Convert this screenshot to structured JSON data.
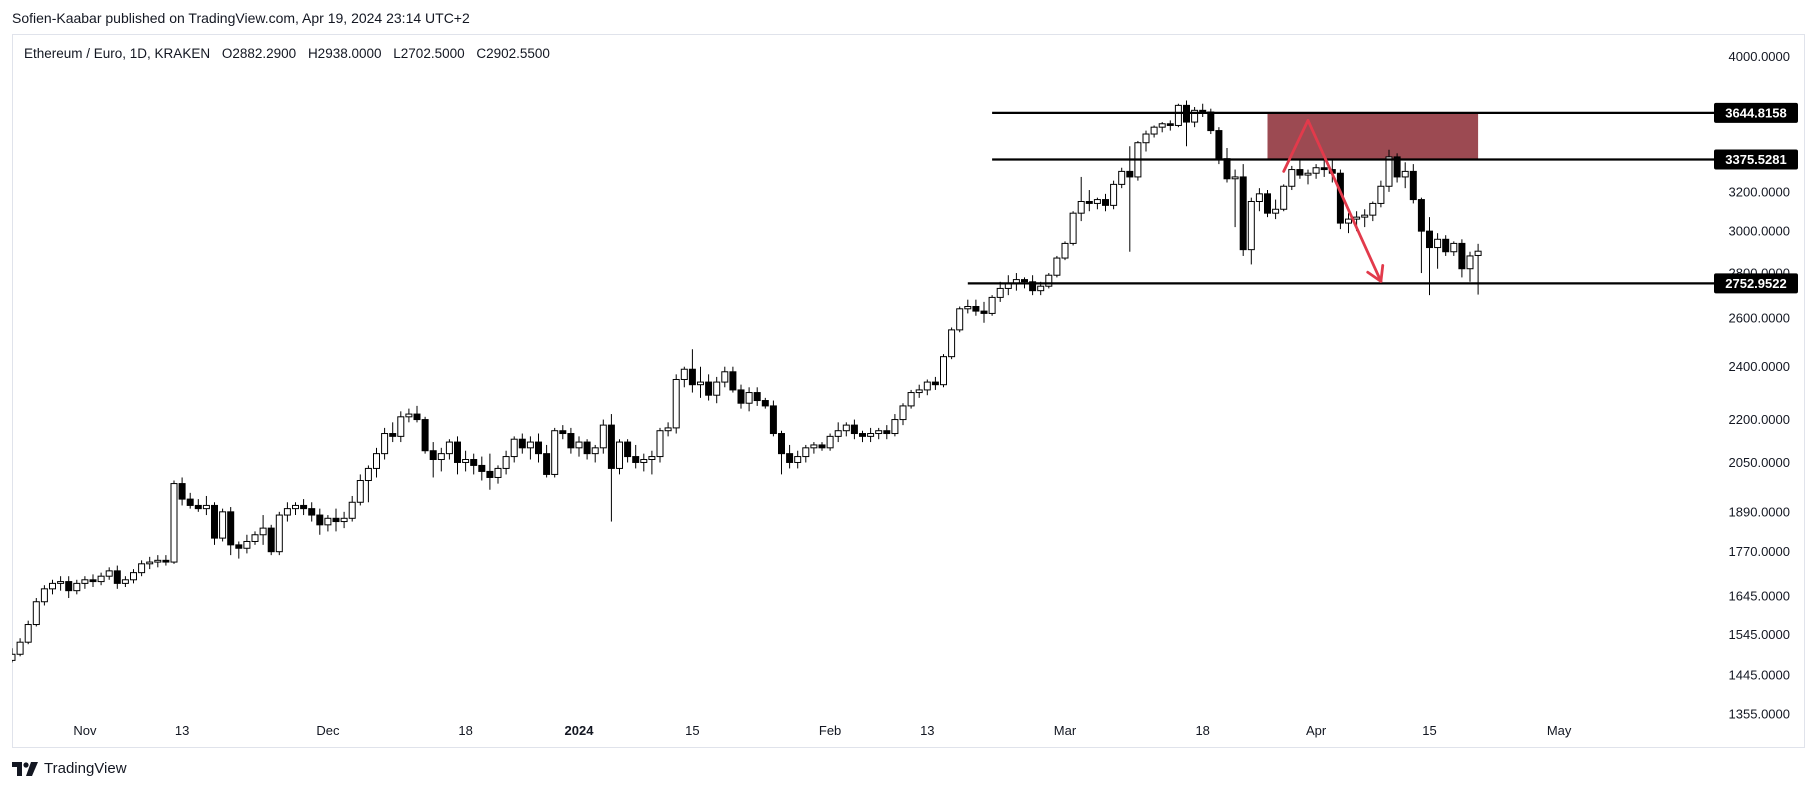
{
  "header": {
    "published_line": "Sofien-Kaabar published on TradingView.com, Apr 19, 2024 23:14 UTC+2"
  },
  "legend": {
    "symbol": "Ethereum / Euro, 1D, KRAKEN",
    "open": "O2882.2900",
    "high": "H2938.0000",
    "low": "L2702.5000",
    "close": "C2902.5500"
  },
  "footer": {
    "brand": "TradingView"
  },
  "colors": {
    "up_candle_fill": "#ffffff",
    "down_candle_fill": "#000000",
    "zone": "#9c4a52",
    "arrow": "#e23a4b",
    "level_label_bg": "#000000"
  },
  "chart_data": {
    "type": "candlestick",
    "scale": "log",
    "ylim": [
      1355,
      4150
    ],
    "y_ticks": [
      "4000.0000",
      "3200.0000",
      "3000.0000",
      "2800.0000",
      "2600.0000",
      "2400.0000",
      "2200.0000",
      "2050.0000",
      "1890.0000",
      "1770.0000",
      "1645.0000",
      "1545.0000",
      "1445.0000",
      "1355.0000"
    ],
    "x_ticks": [
      {
        "label": "Nov",
        "idx": 9,
        "bold": false
      },
      {
        "label": "13",
        "idx": 21,
        "bold": false
      },
      {
        "label": "Dec",
        "idx": 39,
        "bold": false
      },
      {
        "label": "18",
        "idx": 56,
        "bold": false
      },
      {
        "label": "2024",
        "idx": 70,
        "bold": true
      },
      {
        "label": "15",
        "idx": 84,
        "bold": false
      },
      {
        "label": "Feb",
        "idx": 101,
        "bold": false
      },
      {
        "label": "13",
        "idx": 113,
        "bold": false
      },
      {
        "label": "Mar",
        "idx": 130,
        "bold": false
      },
      {
        "label": "18",
        "idx": 147,
        "bold": false
      },
      {
        "label": "Apr",
        "idx": 161,
        "bold": false
      },
      {
        "label": "15",
        "idx": 175,
        "bold": false
      },
      {
        "label": "May",
        "idx": 191,
        "bold": false
      }
    ],
    "levels": [
      {
        "label": "3644.8158",
        "value": 3644.8158,
        "from_idx": 121
      },
      {
        "label": "3375.5281",
        "value": 3375.5281,
        "from_idx": 121
      },
      {
        "label": "2752.9522",
        "value": 2752.9522,
        "from_idx": 118
      }
    ],
    "zone": {
      "from_idx": 155,
      "to_idx": 181,
      "top": 3644.8158,
      "bottom": 3375.5281
    },
    "arrow": [
      {
        "idx": 157,
        "value": 3310
      },
      {
        "idx": 160,
        "value": 3600
      },
      {
        "idx": 169,
        "value": 2762
      }
    ],
    "candles": [
      [
        1480,
        1510,
        1475,
        1495
      ],
      [
        1495,
        1535,
        1490,
        1525
      ],
      [
        1525,
        1580,
        1520,
        1570
      ],
      [
        1570,
        1640,
        1565,
        1630
      ],
      [
        1630,
        1675,
        1620,
        1665
      ],
      [
        1665,
        1690,
        1650,
        1680
      ],
      [
        1680,
        1700,
        1660,
        1685
      ],
      [
        1685,
        1700,
        1640,
        1660
      ],
      [
        1660,
        1690,
        1650,
        1680
      ],
      [
        1680,
        1700,
        1665,
        1690
      ],
      [
        1690,
        1705,
        1670,
        1685
      ],
      [
        1685,
        1710,
        1675,
        1700
      ],
      [
        1700,
        1725,
        1690,
        1715
      ],
      [
        1715,
        1730,
        1665,
        1680
      ],
      [
        1680,
        1700,
        1670,
        1690
      ],
      [
        1690,
        1720,
        1680,
        1710
      ],
      [
        1710,
        1745,
        1700,
        1735
      ],
      [
        1735,
        1755,
        1720,
        1740
      ],
      [
        1740,
        1760,
        1725,
        1745
      ],
      [
        1745,
        1760,
        1730,
        1740
      ],
      [
        1740,
        1990,
        1735,
        1980
      ],
      [
        1980,
        2000,
        1910,
        1930
      ],
      [
        1930,
        1950,
        1900,
        1910
      ],
      [
        1910,
        1930,
        1890,
        1900
      ],
      [
        1900,
        1940,
        1880,
        1910
      ],
      [
        1910,
        1920,
        1790,
        1810
      ],
      [
        1810,
        1900,
        1800,
        1890
      ],
      [
        1890,
        1905,
        1760,
        1790
      ],
      [
        1790,
        1800,
        1750,
        1780
      ],
      [
        1780,
        1820,
        1765,
        1800
      ],
      [
        1800,
        1830,
        1790,
        1820
      ],
      [
        1820,
        1880,
        1790,
        1840
      ],
      [
        1840,
        1850,
        1760,
        1770
      ],
      [
        1770,
        1890,
        1760,
        1880
      ],
      [
        1880,
        1920,
        1860,
        1900
      ],
      [
        1900,
        1920,
        1880,
        1910
      ],
      [
        1910,
        1930,
        1880,
        1900
      ],
      [
        1900,
        1920,
        1860,
        1880
      ],
      [
        1880,
        1900,
        1820,
        1850
      ],
      [
        1850,
        1880,
        1830,
        1870
      ],
      [
        1870,
        1900,
        1830,
        1860
      ],
      [
        1860,
        1890,
        1840,
        1870
      ],
      [
        1870,
        1940,
        1860,
        1920
      ],
      [
        1920,
        2010,
        1910,
        1990
      ],
      [
        1990,
        2040,
        1920,
        2030
      ],
      [
        2030,
        2100,
        2000,
        2080
      ],
      [
        2080,
        2170,
        2060,
        2150
      ],
      [
        2150,
        2190,
        2120,
        2140
      ],
      [
        2140,
        2230,
        2120,
        2210
      ],
      [
        2210,
        2240,
        2190,
        2220
      ],
      [
        2220,
        2250,
        2190,
        2200
      ],
      [
        2200,
        2210,
        2080,
        2090
      ],
      [
        2090,
        2120,
        2000,
        2060
      ],
      [
        2060,
        2100,
        2020,
        2080
      ],
      [
        2080,
        2130,
        2060,
        2120
      ],
      [
        2120,
        2140,
        2010,
        2050
      ],
      [
        2050,
        2090,
        2020,
        2060
      ],
      [
        2060,
        2080,
        2010,
        2040
      ],
      [
        2040,
        2070,
        1990,
        2020
      ],
      [
        2020,
        2080,
        1960,
        2000
      ],
      [
        2000,
        2040,
        1980,
        2030
      ],
      [
        2030,
        2090,
        2010,
        2070
      ],
      [
        2070,
        2140,
        2050,
        2130
      ],
      [
        2130,
        2150,
        2080,
        2100
      ],
      [
        2100,
        2140,
        2060,
        2120
      ],
      [
        2120,
        2150,
        2050,
        2080
      ],
      [
        2080,
        2110,
        2000,
        2010
      ],
      [
        2010,
        2170,
        2000,
        2160
      ],
      [
        2160,
        2180,
        2130,
        2150
      ],
      [
        2150,
        2170,
        2080,
        2100
      ],
      [
        2100,
        2140,
        2070,
        2120
      ],
      [
        2120,
        2130,
        2060,
        2080
      ],
      [
        2080,
        2110,
        2050,
        2100
      ],
      [
        2100,
        2200,
        2080,
        2180
      ],
      [
        2180,
        2220,
        1860,
        2030
      ],
      [
        2030,
        2130,
        2010,
        2120
      ],
      [
        2120,
        2130,
        2050,
        2070
      ],
      [
        2070,
        2110,
        2030,
        2050
      ],
      [
        2050,
        2080,
        2020,
        2060
      ],
      [
        2060,
        2090,
        2010,
        2070
      ],
      [
        2070,
        2170,
        2050,
        2160
      ],
      [
        2160,
        2190,
        2140,
        2170
      ],
      [
        2170,
        2370,
        2150,
        2350
      ],
      [
        2350,
        2400,
        2320,
        2390
      ],
      [
        2390,
        2470,
        2300,
        2330
      ],
      [
        2330,
        2400,
        2280,
        2340
      ],
      [
        2340,
        2370,
        2270,
        2290
      ],
      [
        2290,
        2360,
        2260,
        2340
      ],
      [
        2340,
        2400,
        2320,
        2380
      ],
      [
        2380,
        2400,
        2300,
        2310
      ],
      [
        2310,
        2330,
        2240,
        2260
      ],
      [
        2260,
        2320,
        2230,
        2300
      ],
      [
        2300,
        2320,
        2250,
        2270
      ],
      [
        2270,
        2280,
        2240,
        2250
      ],
      [
        2250,
        2270,
        2140,
        2150
      ],
      [
        2150,
        2160,
        2010,
        2080
      ],
      [
        2080,
        2110,
        2030,
        2050
      ],
      [
        2050,
        2090,
        2030,
        2070
      ],
      [
        2070,
        2110,
        2050,
        2100
      ],
      [
        2100,
        2120,
        2080,
        2110
      ],
      [
        2110,
        2120,
        2090,
        2100
      ],
      [
        2100,
        2150,
        2090,
        2140
      ],
      [
        2140,
        2190,
        2120,
        2160
      ],
      [
        2160,
        2190,
        2140,
        2180
      ],
      [
        2180,
        2200,
        2130,
        2150
      ],
      [
        2150,
        2160,
        2120,
        2140
      ],
      [
        2140,
        2170,
        2120,
        2150
      ],
      [
        2150,
        2170,
        2130,
        2160
      ],
      [
        2160,
        2180,
        2130,
        2150
      ],
      [
        2150,
        2220,
        2140,
        2200
      ],
      [
        2200,
        2260,
        2180,
        2250
      ],
      [
        2250,
        2310,
        2240,
        2300
      ],
      [
        2300,
        2330,
        2280,
        2310
      ],
      [
        2310,
        2350,
        2290,
        2340
      ],
      [
        2340,
        2360,
        2310,
        2330
      ],
      [
        2330,
        2450,
        2320,
        2440
      ],
      [
        2440,
        2560,
        2430,
        2550
      ],
      [
        2550,
        2650,
        2540,
        2640
      ],
      [
        2640,
        2680,
        2620,
        2650
      ],
      [
        2650,
        2680,
        2610,
        2630
      ],
      [
        2630,
        2670,
        2580,
        2620
      ],
      [
        2620,
        2700,
        2610,
        2690
      ],
      [
        2690,
        2760,
        2670,
        2730
      ],
      [
        2730,
        2790,
        2700,
        2750
      ],
      [
        2750,
        2800,
        2720,
        2770
      ],
      [
        2770,
        2780,
        2730,
        2760
      ],
      [
        2760,
        2790,
        2700,
        2720
      ],
      [
        2720,
        2760,
        2700,
        2740
      ],
      [
        2740,
        2800,
        2730,
        2790
      ],
      [
        2790,
        2880,
        2780,
        2870
      ],
      [
        2870,
        2950,
        2860,
        2940
      ],
      [
        2940,
        3100,
        2930,
        3090
      ],
      [
        3090,
        3280,
        3050,
        3150
      ],
      [
        3150,
        3210,
        3100,
        3140
      ],
      [
        3140,
        3170,
        3110,
        3160
      ],
      [
        3160,
        3190,
        3100,
        3130
      ],
      [
        3130,
        3260,
        3110,
        3240
      ],
      [
        3240,
        3330,
        3220,
        3310
      ],
      [
        3310,
        3450,
        2900,
        3280
      ],
      [
        3280,
        3480,
        3260,
        3470
      ],
      [
        3470,
        3540,
        3420,
        3520
      ],
      [
        3520,
        3570,
        3500,
        3560
      ],
      [
        3560,
        3590,
        3530,
        3580
      ],
      [
        3580,
        3600,
        3540,
        3570
      ],
      [
        3570,
        3700,
        3560,
        3690
      ],
      [
        3690,
        3720,
        3450,
        3590
      ],
      [
        3590,
        3680,
        3560,
        3660
      ],
      [
        3660,
        3700,
        3620,
        3650
      ],
      [
        3650,
        3670,
        3520,
        3540
      ],
      [
        3540,
        3560,
        3350,
        3380
      ],
      [
        3380,
        3440,
        3250,
        3270
      ],
      [
        3270,
        3320,
        3020,
        3280
      ],
      [
        3280,
        3350,
        2880,
        2910
      ],
      [
        2910,
        3170,
        2840,
        3150
      ],
      [
        3150,
        3220,
        3100,
        3190
      ],
      [
        3190,
        3210,
        3070,
        3090
      ],
      [
        3090,
        3160,
        3060,
        3110
      ],
      [
        3110,
        3240,
        3100,
        3230
      ],
      [
        3230,
        3340,
        3210,
        3320
      ],
      [
        3320,
        3380,
        3270,
        3290
      ],
      [
        3290,
        3320,
        3240,
        3300
      ],
      [
        3300,
        3350,
        3270,
        3330
      ],
      [
        3330,
        3400,
        3280,
        3320
      ],
      [
        3320,
        3380,
        3250,
        3300
      ],
      [
        3300,
        3320,
        3010,
        3040
      ],
      [
        3040,
        3090,
        2990,
        3060
      ],
      [
        3060,
        3100,
        3000,
        3070
      ],
      [
        3070,
        3110,
        3020,
        3080
      ],
      [
        3080,
        3150,
        3050,
        3140
      ],
      [
        3140,
        3260,
        3120,
        3230
      ],
      [
        3230,
        3430,
        3200,
        3390
      ],
      [
        3390,
        3410,
        3250,
        3280
      ],
      [
        3280,
        3360,
        3220,
        3310
      ],
      [
        3310,
        3350,
        3140,
        3160
      ],
      [
        3160,
        3170,
        2800,
        3000
      ],
      [
        3000,
        3070,
        2700,
        2920
      ],
      [
        2920,
        2990,
        2820,
        2960
      ],
      [
        2960,
        2980,
        2880,
        2900
      ],
      [
        2900,
        2950,
        2880,
        2940
      ],
      [
        2940,
        2960,
        2780,
        2820
      ],
      [
        2820,
        2900,
        2760,
        2880
      ],
      [
        2882.29,
        2938,
        2702.5,
        2902.55
      ]
    ]
  }
}
